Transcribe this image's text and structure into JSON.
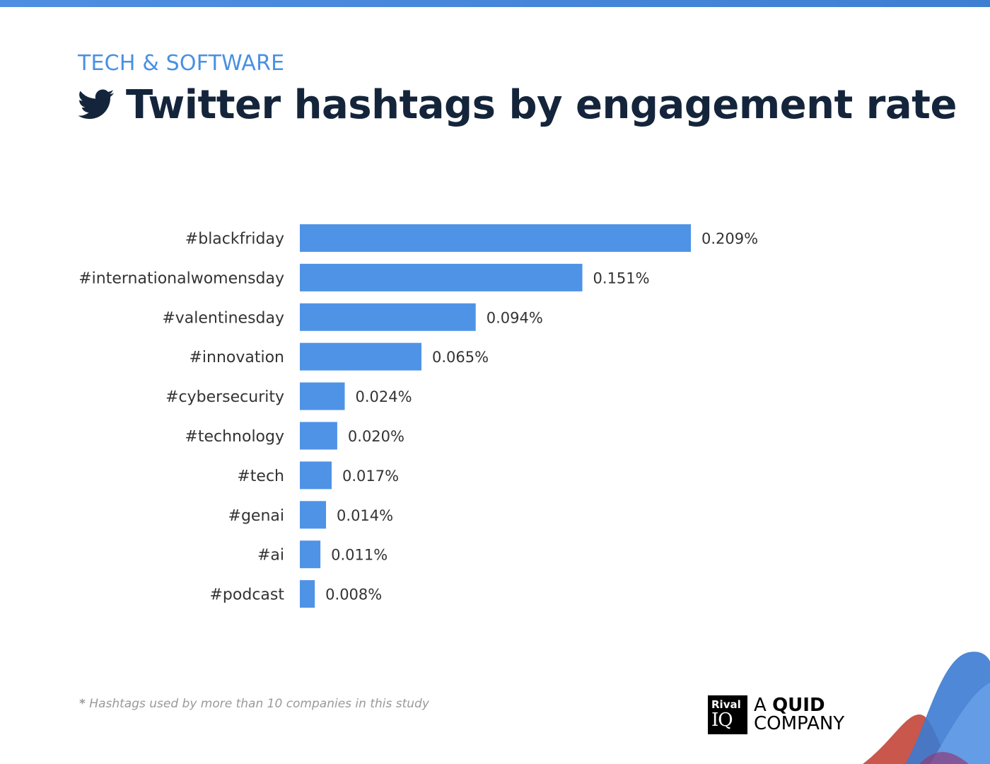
{
  "header": {
    "category": "TECH & SOFTWARE",
    "title": "Twitter hashtags by engagement rate",
    "icon": "twitter-icon"
  },
  "colors": {
    "bar": "#4f93e6",
    "title": "#14253b",
    "category": "#4a90e2",
    "label": "#333333"
  },
  "chart_data": {
    "type": "bar",
    "orientation": "horizontal",
    "title": "Twitter hashtags by engagement rate",
    "xlabel": "",
    "ylabel": "",
    "grid": false,
    "categories": [
      "#blackfriday",
      "#internationalwomensday",
      "#valentinesday",
      "#innovation",
      "#cybersecurity",
      "#technology",
      "#tech",
      "#genai",
      "#ai",
      "#podcast"
    ],
    "values": [
      0.209,
      0.151,
      0.094,
      0.065,
      0.024,
      0.02,
      0.017,
      0.014,
      0.011,
      0.008
    ],
    "value_labels": [
      "0.209%",
      "0.151%",
      "0.094%",
      "0.065%",
      "0.024%",
      "0.020%",
      "0.017%",
      "0.014%",
      "0.011%",
      "0.008%"
    ],
    "xlim": [
      0,
      0.209
    ]
  },
  "footnote": {
    "asterisk": "*",
    "text": "Hashtags used by more than 10 companies in this study"
  },
  "logo": {
    "rival": "Rival",
    "iq": "IQ",
    "a": "A",
    "quid": "QUID",
    "company": "COMPANY"
  }
}
